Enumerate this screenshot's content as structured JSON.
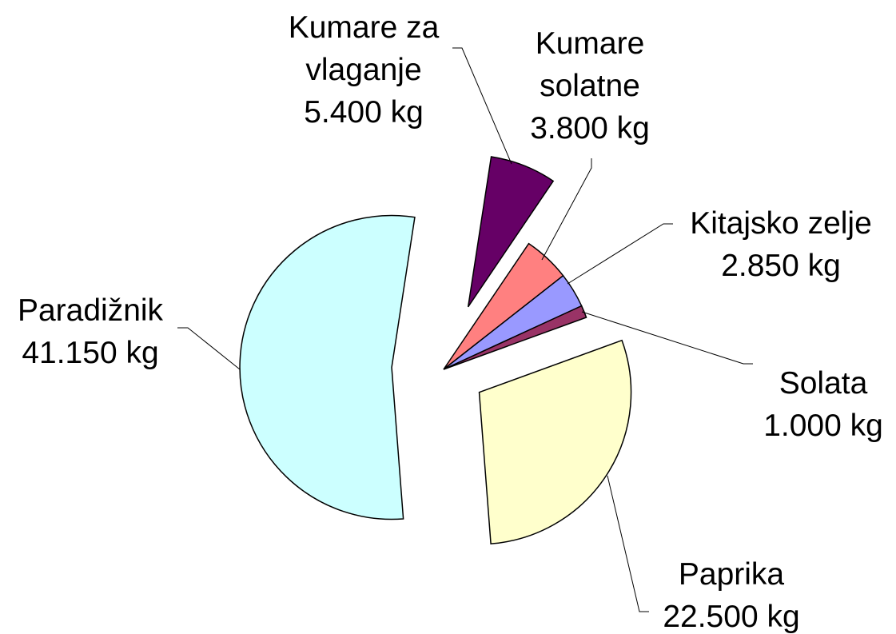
{
  "chart_data": {
    "type": "pie",
    "categories": [
      "Paprika",
      "Paradižnik",
      "Kumare za vlaganje",
      "Kumare solatne",
      "Kitajsko zelje",
      "Solata"
    ],
    "values": [
      22500,
      41150,
      5400,
      3800,
      2850,
      1000
    ],
    "value_labels": [
      "22.500 kg",
      "41.150 kg",
      "5.400 kg",
      "3.800 kg",
      "2.850 kg",
      "1.000 kg"
    ],
    "colors": [
      "#ffffcc",
      "#ccffff",
      "#660066",
      "#ff8080",
      "#9999ff",
      "#993366"
    ]
  }
}
